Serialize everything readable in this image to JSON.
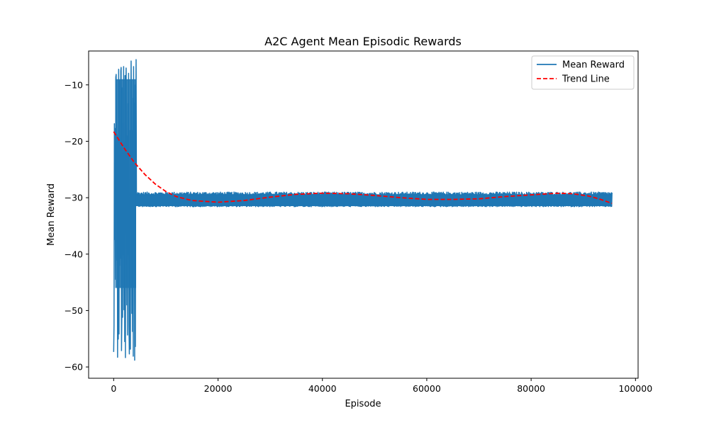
{
  "chart_data": {
    "type": "line",
    "title": "A2C Agent Mean Episodic Rewards",
    "xlabel": "Episode",
    "ylabel": "Mean Reward",
    "xlim": [
      -4800,
      100500
    ],
    "ylim": [
      -62,
      -4
    ],
    "xticks": [
      0,
      20000,
      40000,
      60000,
      80000,
      100000
    ],
    "xtick_labels": [
      "0",
      "20000",
      "40000",
      "60000",
      "80000",
      "100000"
    ],
    "yticks": [
      -10,
      -20,
      -30,
      -40,
      -50,
      -60
    ],
    "ytick_labels": [
      "−10",
      "−20",
      "−30",
      "−40",
      "−50",
      "−60"
    ],
    "grid": false,
    "legend_position": "top-right",
    "series": [
      {
        "name": "Mean Reward",
        "color": "#1f77b4",
        "style": "solid",
        "x_range": [
          0,
          95500
        ],
        "segments": [
          {
            "x_start": 0,
            "x_end": 4300,
            "y_min": -59.3,
            "y_max": -5.5
          },
          {
            "x_start": 4300,
            "x_end": 95500,
            "y_min": -31.5,
            "y_max": -29.5
          }
        ]
      },
      {
        "name": "Trend Line",
        "color": "#ff0000",
        "style": "dashed",
        "x": [
          0,
          2000,
          4000,
          6000,
          8000,
          10000,
          12000,
          15000,
          20000,
          25000,
          30000,
          35000,
          40000,
          45000,
          50000,
          55000,
          60000,
          65000,
          70000,
          75000,
          80000,
          85000,
          88000,
          91000,
          93000,
          95500
        ],
        "y": [
          -18.3,
          -21.2,
          -23.8,
          -25.9,
          -27.6,
          -28.9,
          -29.8,
          -30.5,
          -30.8,
          -30.5,
          -29.9,
          -29.4,
          -29.2,
          -29.3,
          -29.6,
          -30.0,
          -30.3,
          -30.3,
          -30.2,
          -29.8,
          -29.5,
          -29.2,
          -29.3,
          -29.7,
          -30.2,
          -31.0
        ]
      }
    ]
  }
}
